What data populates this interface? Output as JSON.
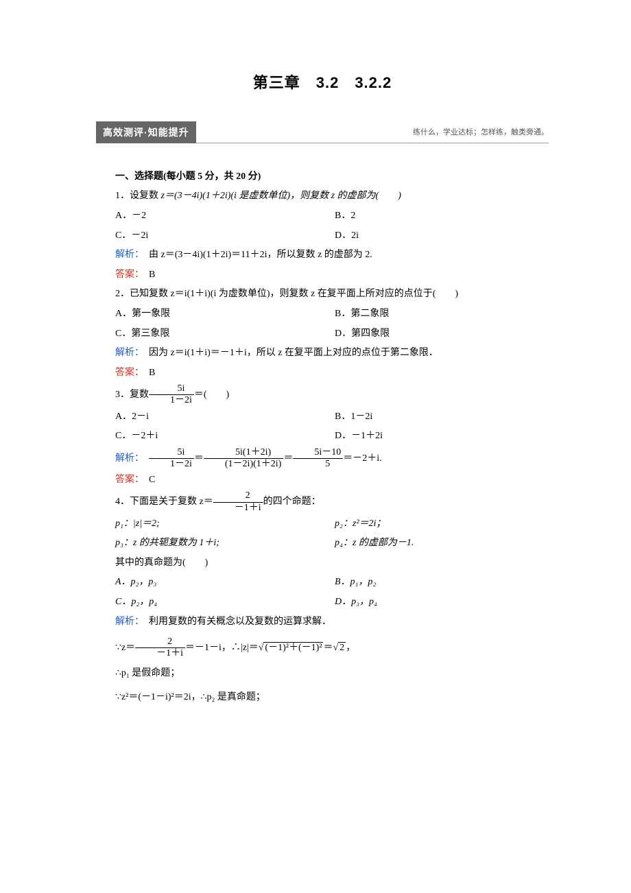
{
  "chapter_title": "第三章　3.2　3.2.2",
  "banner": {
    "label": "高效测评·知能提升",
    "sub": "练什么，学业达标；怎样练，触类旁通。"
  },
  "sec1": {
    "heading": "一、选择题(每小题 5 分，共 20 分)",
    "q1": {
      "stem_pre": "1．设复数 ",
      "stem_eq": "z＝(3－4i)(1＋2i)(i 是虚数单位)，则复数 z 的虚部为(　　)",
      "A": "A．－2",
      "B": "B．2",
      "C": "C．－2i",
      "D": "D．2i",
      "ana_label": "解析：",
      "ana_text": "由 z＝(3－4i)(1＋2i)＝11＋2i，所以复数 z 的虚部为 2.",
      "ans_label": "答案：",
      "ans": "B"
    },
    "q2": {
      "stem": "2．已知复数 z＝i(1＋i)(i 为虚数单位)，则复数 z 在复平面上所对应的点位于(　　)",
      "A": "A．第一象限",
      "B": "B．第二象限",
      "C": "C．第三象限",
      "D": "D．第四象限",
      "ana_label": "解析：",
      "ana_text": "因为 z＝i(1＋i)＝－1＋i，所以 z 在复平面上对应的点位于第二象限．",
      "ans_label": "答案：",
      "ans": "B"
    },
    "q3": {
      "stem_pre": "3．复数",
      "stem_post": "＝(　　)",
      "frac_num": "5i",
      "frac_den": "1－2i",
      "A": "A．2－i",
      "B": "B．1－2i",
      "C": "C．－2＋i",
      "D": "D．－1＋2i",
      "ana_label": "解析：",
      "f1_num": "5i",
      "f1_den": "1－2i",
      "f2_num": "5i(1＋2i)",
      "f2_den": "(1－2i)(1＋2i)",
      "f3_num": "5i－10",
      "f3_den": "5",
      "ana_tail": "＝－2＋i.",
      "ans_label": "答案：",
      "ans": "C"
    },
    "q4": {
      "stem_pre": "4．下面是关于复数 z＝",
      "stem_post": "的四个命题：",
      "frac_num": "2",
      "frac_den": "－1＋i",
      "p1": "p₁：|z|＝2;",
      "p2": "p₂：z²＝2i；",
      "p3": "p₃：z 的共轭复数为 1＋i;",
      "p4": "p₄：z 的虚部为－1.",
      "true_line": "其中的真命题为(　　)",
      "A": "A．p₂，p₃",
      "B": "B．p₁，p₂",
      "C": "C．p₂，p₄",
      "D": "D．p₃，p₄",
      "ana_label": "解析：",
      "ana_line1": "利用复数的有关概念以及复数的运算求解．",
      "step1_pre": "∵z＝",
      "s1_num": "2",
      "s1_den": "－1＋i",
      "step1_mid": "＝－1－i，∴|z|＝",
      "rad1": "(－1)²＋(－1)²",
      "eq": "＝",
      "rad2": "2",
      "step1_post": "，",
      "step2": "∴p₁ 是假命题；",
      "step3": "∵z²＝(－1－i)²＝2i，∴p₂ 是真命题；"
    }
  }
}
